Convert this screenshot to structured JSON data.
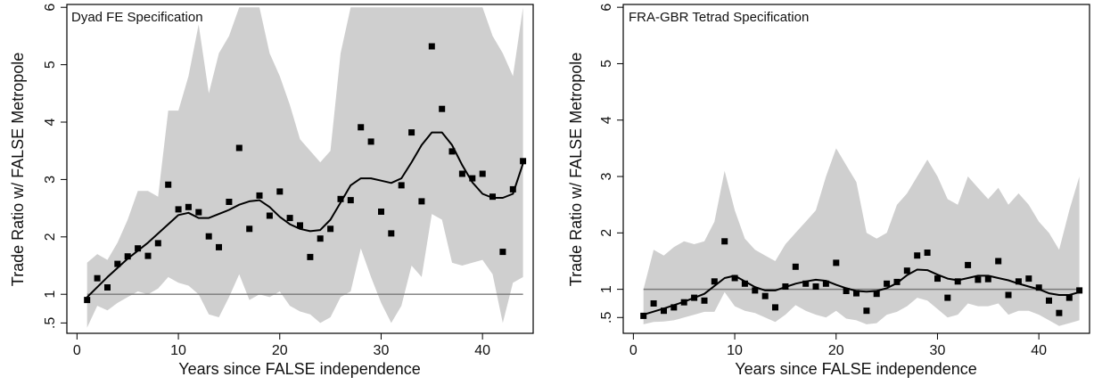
{
  "chart_data": [
    {
      "type": "scatter",
      "title": "Dyad FE Specification",
      "xlabel": "Years since FALSE independence",
      "ylabel": "Trade Ratio w/ FALSE Metropole",
      "xlim": [
        -1,
        45
      ],
      "ylim": [
        0.32,
        6.05
      ],
      "xticks": [
        0,
        10,
        20,
        30,
        40
      ],
      "yticks": [
        0.5,
        1,
        2,
        3,
        4,
        5,
        6
      ],
      "ytick_labels": [
        ".5",
        "1",
        "2",
        "3",
        "4",
        "5",
        "6"
      ],
      "reference_line": 1,
      "points": {
        "x": [
          1,
          2,
          3,
          4,
          5,
          6,
          7,
          8,
          9,
          10,
          11,
          12,
          13,
          14,
          15,
          16,
          17,
          18,
          19,
          20,
          21,
          22,
          23,
          24,
          25,
          26,
          27,
          28,
          29,
          30,
          31,
          32,
          33,
          34,
          35,
          36,
          37,
          38,
          39,
          40,
          41,
          42,
          43,
          44
        ],
        "y": [
          0.9,
          1.28,
          1.12,
          1.53,
          1.66,
          1.8,
          1.67,
          1.89,
          2.91,
          2.48,
          2.52,
          2.43,
          2.01,
          1.82,
          2.61,
          3.55,
          2.14,
          2.72,
          2.37,
          2.79,
          2.33,
          2.2,
          1.65,
          1.97,
          2.14,
          2.66,
          2.64,
          3.91,
          3.66,
          2.44,
          2.06,
          2.9,
          3.82,
          2.62,
          5.32,
          4.23,
          3.49,
          3.1,
          3.02,
          3.1,
          2.7,
          1.74,
          2.83,
          3.32
        ]
      },
      "smooth": {
        "x": [
          1,
          3,
          5,
          7,
          9,
          10,
          11,
          12,
          13,
          14,
          15,
          16,
          17,
          18,
          19,
          20,
          21,
          22,
          23,
          24,
          25,
          26,
          27,
          28,
          29,
          30,
          31,
          32,
          33,
          34,
          35,
          36,
          37,
          38,
          39,
          40,
          41,
          42,
          43,
          44
        ],
        "y": [
          0.95,
          1.3,
          1.62,
          1.9,
          2.22,
          2.38,
          2.42,
          2.33,
          2.33,
          2.4,
          2.47,
          2.56,
          2.62,
          2.64,
          2.52,
          2.35,
          2.22,
          2.14,
          2.1,
          2.12,
          2.3,
          2.6,
          2.9,
          3.02,
          3.02,
          2.98,
          2.94,
          3.02,
          3.3,
          3.6,
          3.82,
          3.82,
          3.6,
          3.25,
          2.95,
          2.75,
          2.68,
          2.68,
          2.75,
          3.28
        ]
      },
      "band": {
        "x": [
          1,
          2,
          3,
          4,
          5,
          6,
          7,
          8,
          9,
          10,
          11,
          12,
          13,
          14,
          15,
          16,
          17,
          18,
          19,
          20,
          21,
          22,
          23,
          24,
          25,
          26,
          27,
          28,
          29,
          30,
          31,
          32,
          33,
          34,
          35,
          36,
          37,
          38,
          39,
          40,
          41,
          42,
          43,
          44
        ],
        "upper": [
          1.55,
          1.7,
          1.6,
          1.9,
          2.3,
          2.8,
          2.8,
          2.7,
          4.2,
          4.2,
          4.8,
          5.7,
          4.5,
          5.2,
          5.5,
          6.0,
          6.0,
          6.0,
          5.2,
          4.8,
          4.3,
          3.7,
          3.5,
          3.3,
          3.5,
          5.2,
          6.0,
          6.0,
          6.0,
          6.0,
          6.0,
          6.0,
          6.0,
          6.0,
          6.0,
          6.0,
          6.0,
          6.0,
          6.0,
          6.0,
          5.5,
          5.2,
          4.8,
          6.0
        ],
        "lower": [
          0.42,
          0.8,
          0.72,
          0.85,
          0.95,
          1.05,
          1.0,
          1.1,
          1.3,
          1.2,
          1.15,
          1.0,
          0.65,
          0.6,
          0.95,
          1.35,
          0.9,
          1.0,
          0.95,
          1.05,
          0.8,
          0.7,
          0.65,
          0.5,
          0.6,
          0.95,
          1.05,
          1.8,
          1.3,
          0.85,
          0.5,
          0.8,
          1.5,
          1.3,
          2.4,
          2.3,
          1.55,
          1.5,
          1.55,
          1.6,
          1.35,
          0.5,
          1.2,
          1.3
        ]
      }
    },
    {
      "type": "scatter",
      "title": "FRA-GBR Tetrad Specification",
      "xlabel": "Years since FALSE independence",
      "ylabel": "Trade Ratio w/ FALSE Metropole",
      "xlim": [
        -1,
        45
      ],
      "ylim": [
        0.22,
        6.05
      ],
      "xticks": [
        0,
        10,
        20,
        30,
        40
      ],
      "yticks": [
        0.5,
        1,
        2,
        3,
        4,
        5,
        6
      ],
      "ytick_labels": [
        ".5",
        "1",
        "2",
        "3",
        "4",
        "5",
        "6"
      ],
      "reference_line": 1,
      "points": {
        "x": [
          1,
          2,
          3,
          4,
          5,
          6,
          7,
          8,
          9,
          10,
          11,
          12,
          13,
          14,
          15,
          16,
          17,
          18,
          19,
          20,
          21,
          22,
          23,
          24,
          25,
          26,
          27,
          28,
          29,
          30,
          31,
          32,
          33,
          34,
          35,
          36,
          37,
          38,
          39,
          40,
          41,
          42,
          43,
          44
        ],
        "y": [
          0.53,
          0.75,
          0.62,
          0.68,
          0.77,
          0.85,
          0.8,
          1.14,
          1.85,
          1.2,
          1.1,
          0.98,
          0.88,
          0.68,
          1.05,
          1.4,
          1.1,
          1.05,
          1.1,
          1.47,
          0.97,
          0.93,
          0.62,
          0.92,
          1.1,
          1.13,
          1.33,
          1.6,
          1.65,
          1.19,
          0.85,
          1.14,
          1.43,
          1.17,
          1.18,
          1.5,
          0.9,
          1.14,
          1.19,
          1.03,
          0.8,
          0.58,
          0.85,
          0.98
        ]
      },
      "smooth": {
        "x": [
          1,
          3,
          5,
          7,
          9,
          10,
          11,
          12,
          13,
          14,
          15,
          16,
          17,
          18,
          19,
          20,
          21,
          22,
          23,
          24,
          25,
          26,
          27,
          28,
          29,
          30,
          31,
          32,
          33,
          34,
          35,
          36,
          37,
          38,
          39,
          40,
          41,
          42,
          43,
          44
        ],
        "y": [
          0.55,
          0.66,
          0.78,
          0.92,
          1.2,
          1.24,
          1.14,
          1.04,
          0.98,
          0.98,
          1.04,
          1.1,
          1.14,
          1.17,
          1.15,
          1.08,
          1.02,
          0.97,
          0.96,
          0.97,
          1.02,
          1.11,
          1.25,
          1.35,
          1.34,
          1.26,
          1.19,
          1.16,
          1.2,
          1.24,
          1.24,
          1.2,
          1.16,
          1.1,
          1.05,
          1.0,
          0.93,
          0.9,
          0.9,
          0.95
        ]
      },
      "band": {
        "x": [
          1,
          2,
          3,
          4,
          5,
          6,
          7,
          8,
          9,
          10,
          11,
          12,
          13,
          14,
          15,
          16,
          17,
          18,
          19,
          20,
          21,
          22,
          23,
          24,
          25,
          26,
          27,
          28,
          29,
          30,
          31,
          32,
          33,
          34,
          35,
          36,
          37,
          38,
          39,
          40,
          41,
          42,
          43,
          44
        ],
        "upper": [
          1.0,
          1.7,
          1.6,
          1.75,
          1.85,
          1.8,
          1.85,
          2.2,
          3.1,
          2.4,
          1.9,
          1.7,
          1.6,
          1.5,
          1.8,
          2.0,
          2.2,
          2.4,
          3.0,
          3.5,
          3.2,
          2.9,
          2.0,
          1.9,
          2.0,
          2.5,
          2.7,
          3.0,
          3.3,
          3.0,
          2.6,
          2.5,
          3.0,
          2.8,
          2.6,
          2.8,
          2.5,
          2.7,
          2.5,
          2.2,
          2.0,
          1.7,
          2.4,
          3.0
        ],
        "lower": [
          0.38,
          0.42,
          0.43,
          0.45,
          0.5,
          0.55,
          0.6,
          0.6,
          0.95,
          0.7,
          0.62,
          0.58,
          0.5,
          0.42,
          0.55,
          0.72,
          0.62,
          0.55,
          0.5,
          0.62,
          0.48,
          0.45,
          0.38,
          0.4,
          0.55,
          0.6,
          0.7,
          0.85,
          0.8,
          0.65,
          0.5,
          0.55,
          0.75,
          0.7,
          0.7,
          0.75,
          0.55,
          0.62,
          0.62,
          0.55,
          0.45,
          0.35,
          0.4,
          0.45
        ]
      }
    }
  ]
}
